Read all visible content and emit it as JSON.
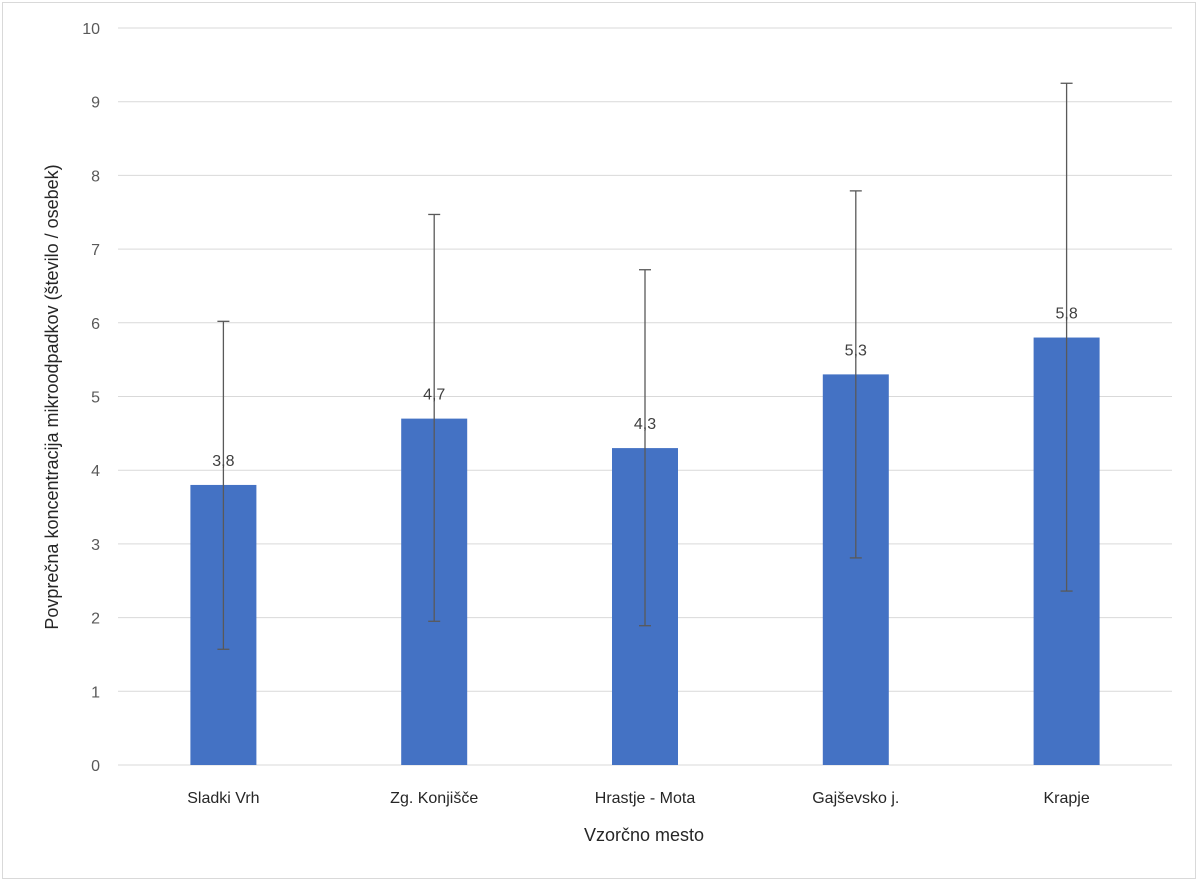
{
  "chart_data": {
    "type": "bar",
    "title": "",
    "xlabel": "Vzorčno mesto",
    "ylabel": "Povprečna koncentracija mikroodpadkov (število / osebek)",
    "categories": [
      "Sladki Vrh",
      "Zg. Konjišče",
      "Hrastje - Mota",
      "Gajševsko j.",
      "Krapje"
    ],
    "series": [
      {
        "values": [
          3.8,
          4.7,
          4.3,
          5.3,
          5.8
        ],
        "error_low": [
          1.57,
          1.95,
          1.89,
          2.81,
          2.36
        ],
        "error_high": [
          6.02,
          7.47,
          6.72,
          7.79,
          9.25
        ],
        "data_labels": [
          "3,8",
          "4,7",
          "4,3",
          "5,3",
          "5,8"
        ],
        "color": "#4472c4"
      }
    ],
    "ylim": [
      0,
      10
    ],
    "yticks": [
      "0",
      "1",
      "2",
      "3",
      "4",
      "5",
      "6",
      "7",
      "8",
      "9",
      "10"
    ],
    "grid": true,
    "legend": "none",
    "colors": {
      "bar": "#4472c4",
      "gridline": "#d9d9d9",
      "error_bar": "#595959"
    }
  }
}
